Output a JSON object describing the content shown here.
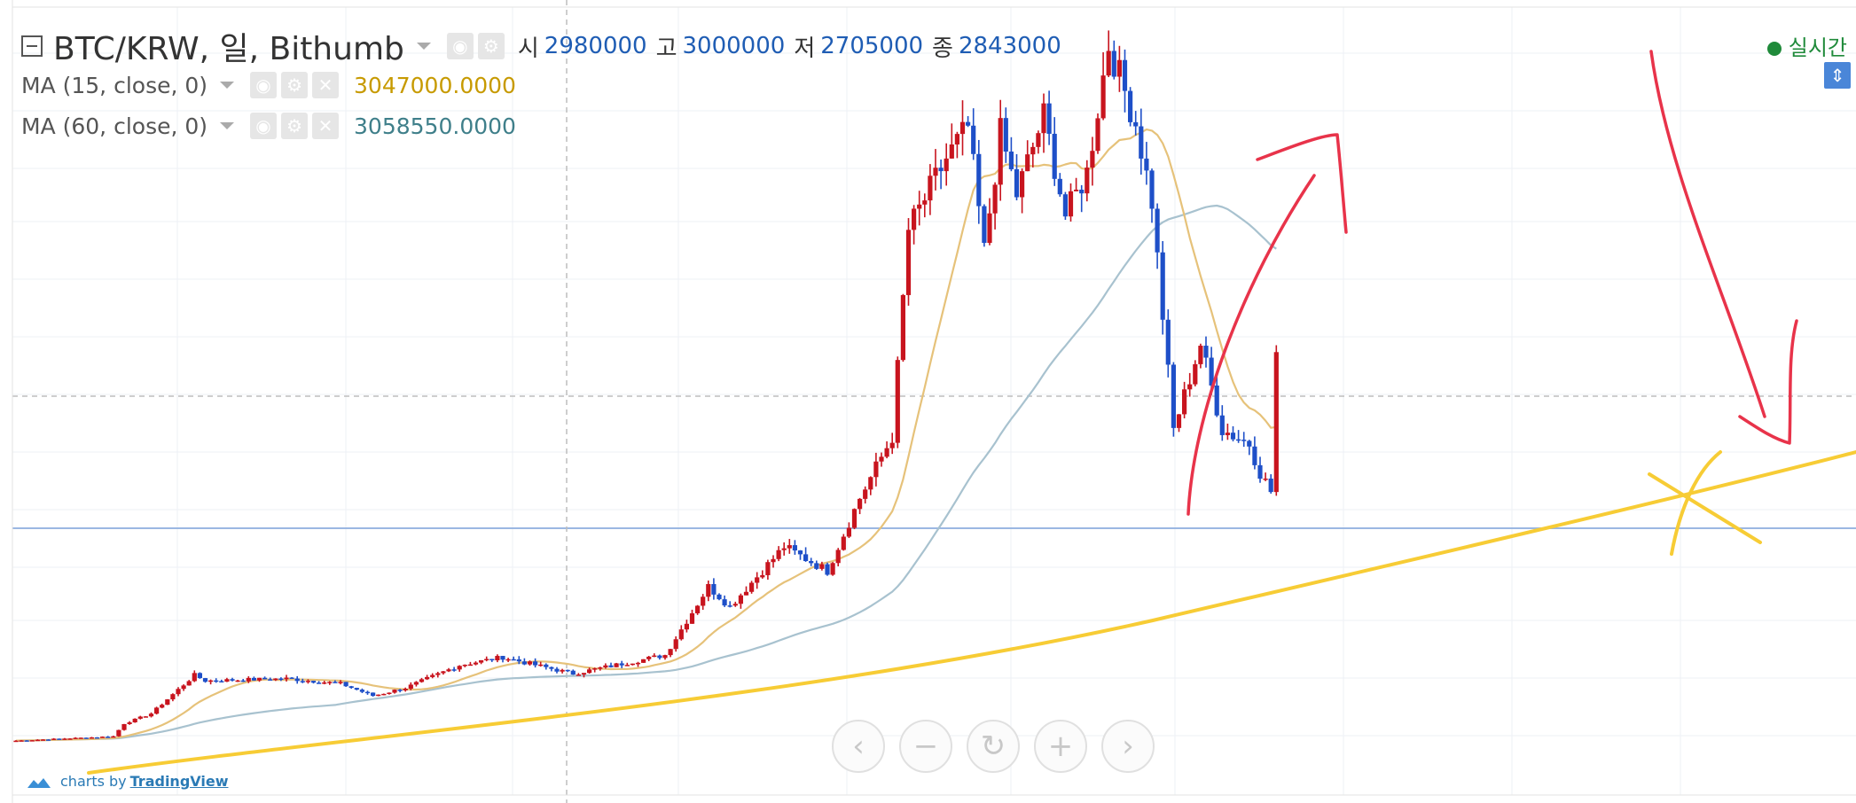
{
  "header": {
    "symbol": "BTC/KRW, 일, Bithumb",
    "ohlc": [
      {
        "key": "시",
        "value": "2980000"
      },
      {
        "key": "고",
        "value": "3000000"
      },
      {
        "key": "저",
        "value": "2705000"
      },
      {
        "key": "종",
        "value": "2843000"
      }
    ]
  },
  "indicators": [
    {
      "name": "MA (15, close, 0)",
      "value": "3047000.0000",
      "color": "#c79a00"
    },
    {
      "name": "MA (60, close, 0)",
      "value": "3058550.0000",
      "color": "#3f7f8a"
    }
  ],
  "status": {
    "realtime_label": "실시간"
  },
  "icons": {
    "collapse": "collapse-square-icon",
    "eye": "eye-icon",
    "gear": "gear-icon",
    "close": "close-icon",
    "navigation": [
      "chevron-left-icon",
      "minus-icon",
      "reset-icon",
      "plus-icon",
      "chevron-right-icon"
    ]
  },
  "navigation": [
    "‹",
    "−",
    "↻",
    "+",
    "›"
  ],
  "footer": {
    "credit_prefix": "charts by",
    "credit_brand": "TradingView"
  },
  "colors": {
    "up": "#c8141e",
    "down": "#1e4fc8",
    "ma15": "#e6c27a",
    "ma60": "#a8c2cf",
    "annotation_red": "#e8334a",
    "annotation_yellow": "#f7cc35",
    "price_line": "#9bb7e2"
  },
  "chart_data": {
    "type": "candlestick",
    "series": [
      {
        "name": "BTC/KRW",
        "approximate_close_path": [
          {
            "t": 0,
            "close": 120000
          },
          {
            "t": 18,
            "close": 150000
          },
          {
            "t": 20,
            "close": 240000
          },
          {
            "t": 25,
            "close": 310000
          },
          {
            "t": 33,
            "close": 580000
          },
          {
            "t": 35,
            "close": 540000
          },
          {
            "t": 50,
            "close": 555000
          },
          {
            "t": 60,
            "close": 520000
          },
          {
            "t": 66,
            "close": 435000
          },
          {
            "t": 72,
            "close": 490000
          },
          {
            "t": 82,
            "close": 650000
          },
          {
            "t": 90,
            "close": 705000
          },
          {
            "t": 96,
            "close": 650000
          },
          {
            "t": 103,
            "close": 590000
          },
          {
            "t": 120,
            "close": 720000
          },
          {
            "t": 128,
            "close": 1200000
          },
          {
            "t": 132,
            "close": 1060000
          },
          {
            "t": 142,
            "close": 1480000
          },
          {
            "t": 150,
            "close": 1310000
          },
          {
            "t": 156,
            "close": 1820000
          },
          {
            "t": 162,
            "close": 2250000
          },
          {
            "t": 165,
            "close": 3700000
          },
          {
            "t": 172,
            "close": 4200000
          },
          {
            "t": 176,
            "close": 4420000
          },
          {
            "t": 179,
            "close": 3550000
          },
          {
            "t": 182,
            "close": 4380000
          },
          {
            "t": 185,
            "close": 3950000
          },
          {
            "t": 190,
            "close": 4500000
          },
          {
            "t": 194,
            "close": 3800000
          },
          {
            "t": 198,
            "close": 4100000
          },
          {
            "t": 202,
            "close": 5000000
          },
          {
            "t": 207,
            "close": 4450000
          },
          {
            "t": 210,
            "close": 3900000
          },
          {
            "t": 214,
            "close": 2300000
          },
          {
            "t": 219,
            "close": 2900000
          },
          {
            "t": 223,
            "close": 2300000
          },
          {
            "t": 228,
            "close": 2200000
          },
          {
            "t": 230,
            "close": 2000000
          },
          {
            "t": 233,
            "close": 1800000
          }
        ]
      }
    ],
    "moving_averages": [
      {
        "period": 15,
        "value": 3047000
      },
      {
        "period": 60,
        "value": 3058550
      }
    ],
    "last_close": 2843000
  }
}
